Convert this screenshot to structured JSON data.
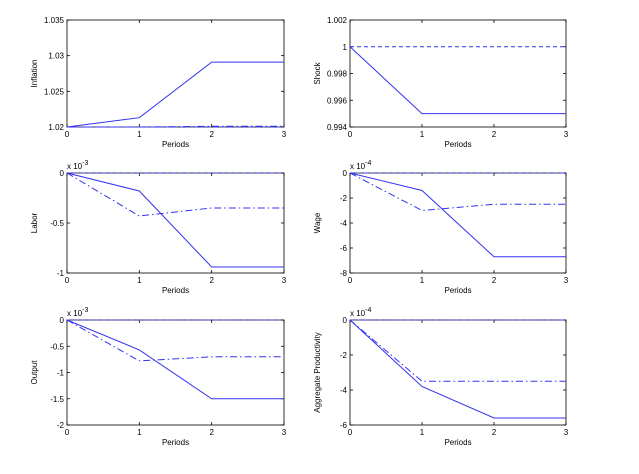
{
  "figure": {
    "type": "impulse-response panels",
    "background": "#ffffff"
  },
  "style": {
    "line_color": "#3333ee",
    "axis_color": "#000000"
  },
  "chart_data": [
    {
      "type": "line",
      "ylabel": "Inflation",
      "xlabel": "Periods",
      "x": [
        0,
        1,
        2,
        3
      ],
      "xlim": [
        0,
        3
      ],
      "ylim": [
        1.02,
        1.035
      ],
      "yticks": [
        "1.02",
        "1.025",
        "1.03",
        "1.035"
      ],
      "xticks": [
        "0",
        "1",
        "2",
        "3"
      ],
      "exponent": "",
      "series": [
        {
          "name": "solid",
          "dash": "solid",
          "values": [
            1.02,
            1.0213,
            1.0291,
            1.0291
          ]
        },
        {
          "name": "dashdot",
          "dash": "dashdot",
          "values": [
            1.02,
            1.02,
            1.0201,
            1.0201
          ]
        },
        {
          "name": "baseline",
          "dash": "dashed",
          "values": [
            1.02,
            1.02,
            1.02,
            1.02
          ]
        }
      ]
    },
    {
      "type": "line",
      "ylabel": "Shock",
      "xlabel": "Periods",
      "x": [
        0,
        1,
        2,
        3
      ],
      "xlim": [
        0,
        3
      ],
      "ylim": [
        0.994,
        1.002
      ],
      "yticks": [
        "0.994",
        "0.996",
        "0.998",
        "1",
        "1.002"
      ],
      "xticks": [
        "0",
        "1",
        "2",
        "3"
      ],
      "exponent": "",
      "series": [
        {
          "name": "solid",
          "dash": "solid",
          "values": [
            1.0,
            0.995,
            0.995,
            0.995
          ]
        },
        {
          "name": "baseline",
          "dash": "dashed",
          "values": [
            1.0,
            1.0,
            1.0,
            1.0
          ]
        }
      ]
    },
    {
      "type": "line",
      "ylabel": "Labor",
      "xlabel": "Periods",
      "x": [
        0,
        1,
        2,
        3
      ],
      "xlim": [
        0,
        3
      ],
      "ylim": [
        -1,
        0
      ],
      "yticks": [
        "-1",
        "-0.5",
        "0"
      ],
      "xticks": [
        "0",
        "1",
        "2",
        "3"
      ],
      "exponent": "x 10-3",
      "exponent_base": "x 10",
      "exponent_power": "-3",
      "series": [
        {
          "name": "solid",
          "dash": "solid",
          "values": [
            0,
            -0.18,
            -0.94,
            -0.94
          ]
        },
        {
          "name": "dashdot",
          "dash": "dashdot",
          "values": [
            0,
            -0.43,
            -0.35,
            -0.35
          ]
        },
        {
          "name": "baseline",
          "dash": "dashed",
          "values": [
            0,
            0,
            0,
            0
          ]
        }
      ]
    },
    {
      "type": "line",
      "ylabel": "Wage",
      "xlabel": "Periods",
      "x": [
        0,
        1,
        2,
        3
      ],
      "xlim": [
        0,
        3
      ],
      "ylim": [
        -8,
        0
      ],
      "yticks": [
        "-8",
        "-6",
        "-4",
        "-2",
        "0"
      ],
      "xticks": [
        "0",
        "1",
        "2",
        "3"
      ],
      "exponent": "x 10-4",
      "exponent_base": "x 10",
      "exponent_power": "-4",
      "series": [
        {
          "name": "solid",
          "dash": "solid",
          "values": [
            0,
            -1.4,
            -6.7,
            -6.7
          ]
        },
        {
          "name": "dashdot",
          "dash": "dashdot",
          "values": [
            0,
            -3.0,
            -2.5,
            -2.5
          ]
        },
        {
          "name": "baseline",
          "dash": "dashed",
          "values": [
            0,
            0,
            0,
            0
          ]
        }
      ]
    },
    {
      "type": "line",
      "ylabel": "Output",
      "xlabel": "Periods",
      "x": [
        0,
        1,
        2,
        3
      ],
      "xlim": [
        0,
        3
      ],
      "ylim": [
        -2,
        0
      ],
      "yticks": [
        "-2",
        "-1.5",
        "-1",
        "-0.5",
        "0"
      ],
      "xticks": [
        "0",
        "1",
        "2",
        "3"
      ],
      "exponent": "x 10-3",
      "exponent_base": "x 10",
      "exponent_power": "-3",
      "series": [
        {
          "name": "solid",
          "dash": "solid",
          "values": [
            0,
            -0.57,
            -1.5,
            -1.5
          ]
        },
        {
          "name": "dashdot",
          "dash": "dashdot",
          "values": [
            0,
            -0.78,
            -0.7,
            -0.7
          ]
        },
        {
          "name": "baseline",
          "dash": "dashed",
          "values": [
            0,
            0,
            0,
            0
          ]
        }
      ]
    },
    {
      "type": "line",
      "ylabel": "Aggregate Productivity",
      "xlabel": "Periods",
      "x": [
        0,
        1,
        2,
        3
      ],
      "xlim": [
        0,
        3
      ],
      "ylim": [
        -6,
        0
      ],
      "yticks": [
        "-6",
        "-4",
        "-2",
        "0"
      ],
      "xticks": [
        "0",
        "1",
        "2",
        "3"
      ],
      "exponent": "x 10-4",
      "exponent_base": "x 10",
      "exponent_power": "-4",
      "series": [
        {
          "name": "solid",
          "dash": "solid",
          "values": [
            0,
            -3.8,
            -5.6,
            -5.6
          ]
        },
        {
          "name": "dashdot",
          "dash": "dashdot",
          "values": [
            0,
            -3.5,
            -3.5,
            -3.5
          ]
        },
        {
          "name": "baseline",
          "dash": "dashed",
          "values": [
            0,
            0,
            0,
            0
          ]
        }
      ]
    }
  ]
}
